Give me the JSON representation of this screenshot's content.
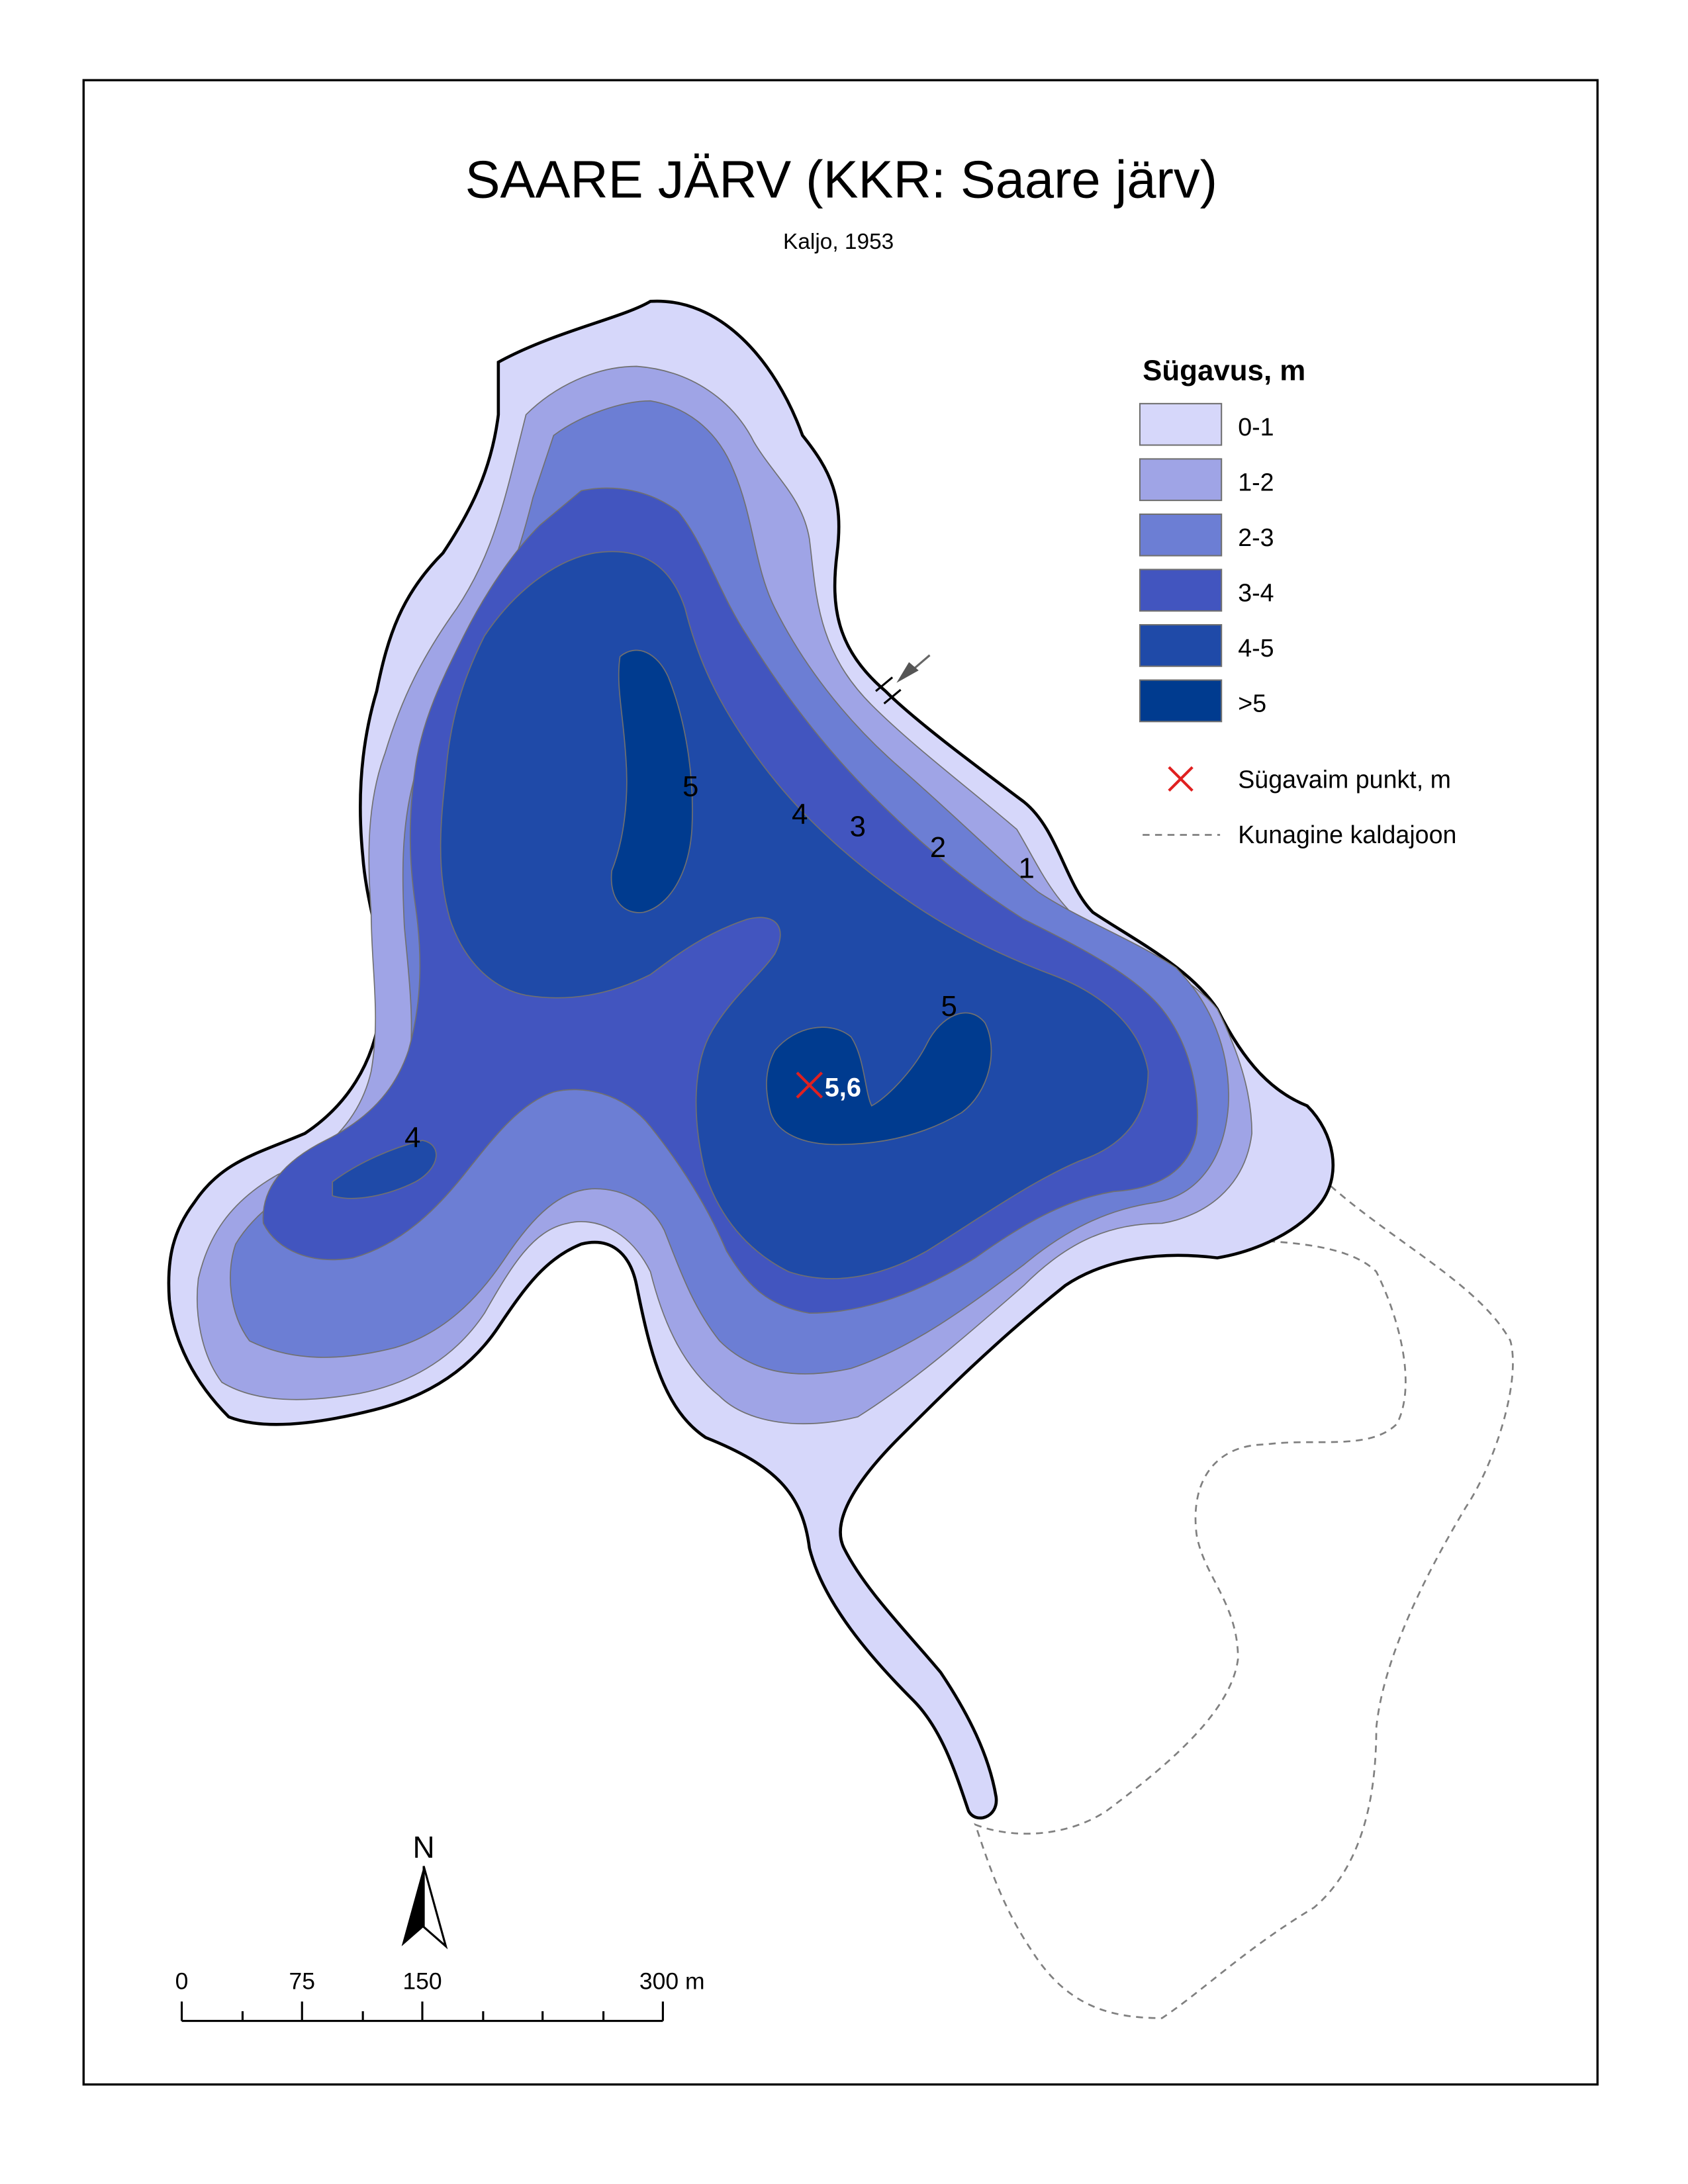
{
  "map": {
    "title": "SAARE JÄRV (KKR: Saare järv)",
    "subtitle": "Kaljo, 1953"
  },
  "legend": {
    "heading": "Sügavus, m",
    "classes": [
      {
        "label": "0-1",
        "color": "#d6d7fa"
      },
      {
        "label": "1-2",
        "color": "#9fa4e6"
      },
      {
        "label": "2-3",
        "color": "#6c7ed4"
      },
      {
        "label": "3-4",
        "color": "#4255bf"
      },
      {
        "label": "4-5",
        "color": "#1f4aa8"
      },
      {
        "label": ">5",
        "color": "#003b8f"
      }
    ],
    "deepest_point": {
      "label": "Sügavaim punkt, m",
      "color": "#e02020"
    },
    "former_shoreline": {
      "label": "Kunagine kaldajoon",
      "color": "#808080"
    }
  },
  "contour_labels": [
    "5",
    "4",
    "3",
    "2",
    "1",
    "5",
    "4"
  ],
  "deepest_point_value": "5,6",
  "north_arrow": {
    "label": "N"
  },
  "scale_bar": {
    "ticks": [
      "0",
      "75",
      "150",
      "300 m"
    ]
  },
  "icons": {
    "inflow": "inflow-arrow-icon",
    "north": "north-arrow-icon",
    "deepest": "deepest-point-cross-icon"
  }
}
